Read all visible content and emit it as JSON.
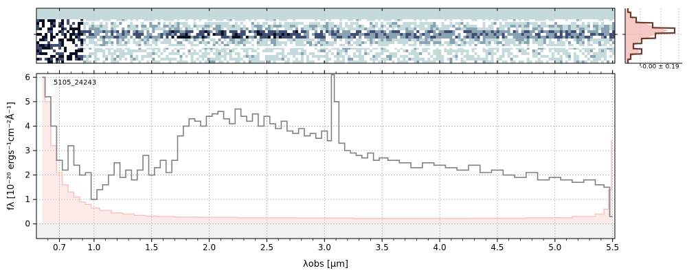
{
  "chart_data": [
    {
      "type": "heatmap",
      "panel": "2D spectrum",
      "colormap": [
        "#ffffff",
        "#c5dadb",
        "#8aa3b3",
        "#3f4e72",
        "#0b0f22"
      ],
      "background_color": "#c5dadb",
      "trace": "dark horizontal trace along the center, strongest between 2.0 and 3.1 µm"
    },
    {
      "type": "line",
      "panel": "spatial profile",
      "annotation": "-0.00 ± 0.19",
      "series_colors": {
        "profile": "#6b3a2a",
        "model": "#f2b7b2"
      },
      "profile_y": [
        0.05,
        0.1,
        0.2,
        0.5,
        0.9,
        0.55,
        0.3,
        0.15,
        0.3,
        0.1,
        0.05
      ],
      "grid": true
    },
    {
      "type": "line",
      "panel": "1D spectrum",
      "label": "5105_24243",
      "xlabel": "λobs [μm]",
      "ylabel": "fλ [10⁻²⁰ ergs⁻¹cm⁻²Å⁻¹]",
      "x_ticks": [
        "0.7",
        "1.0",
        "1.5",
        "2.0",
        "2.5",
        "3.0",
        "3.5",
        "4.0",
        "4.5",
        "5.0",
        "5.5"
      ],
      "x_tick_values": [
        0.7,
        1.0,
        1.5,
        2.0,
        2.5,
        3.0,
        3.5,
        4.0,
        4.5,
        5.0,
        5.5
      ],
      "y_ticks": [
        "0",
        "1",
        "2",
        "3",
        "4",
        "5",
        "6"
      ],
      "y_tick_values": [
        0,
        1,
        2,
        3,
        4,
        5,
        6
      ],
      "xlim": [
        0.5,
        5.52
      ],
      "ylim": [
        -0.6,
        6.15
      ],
      "grid": true,
      "series": [
        {
          "role": "flux",
          "color": "#808080",
          "x": [
            0.55,
            0.6,
            0.65,
            0.7,
            0.75,
            0.8,
            0.85,
            0.9,
            0.95,
            1.0,
            1.05,
            1.1,
            1.15,
            1.2,
            1.25,
            1.3,
            1.35,
            1.4,
            1.45,
            1.5,
            1.55,
            1.6,
            1.65,
            1.7,
            1.75,
            1.8,
            1.85,
            1.9,
            1.95,
            2.0,
            2.05,
            2.1,
            2.15,
            2.2,
            2.25,
            2.3,
            2.35,
            2.4,
            2.45,
            2.5,
            2.55,
            2.6,
            2.65,
            2.7,
            2.75,
            2.8,
            2.85,
            2.9,
            2.95,
            3.0,
            3.05,
            3.07,
            3.1,
            3.15,
            3.2,
            3.25,
            3.3,
            3.35,
            3.4,
            3.45,
            3.5,
            3.6,
            3.7,
            3.8,
            3.9,
            4.0,
            4.1,
            4.2,
            4.3,
            4.4,
            4.5,
            4.6,
            4.7,
            4.8,
            4.9,
            5.0,
            5.1,
            5.2,
            5.3,
            5.4,
            5.45,
            5.5
          ],
          "y": [
            6.0,
            5.2,
            4.0,
            2.6,
            2.2,
            3.2,
            2.4,
            2.0,
            2.1,
            1.0,
            1.4,
            1.6,
            2.0,
            2.5,
            1.9,
            2.2,
            1.8,
            2.2,
            2.8,
            2.0,
            2.3,
            2.6,
            2.1,
            2.6,
            3.6,
            4.0,
            4.3,
            4.2,
            4.0,
            4.4,
            4.5,
            4.6,
            4.3,
            4.1,
            4.7,
            4.4,
            4.2,
            4.5,
            4.0,
            4.4,
            4.1,
            3.9,
            4.2,
            3.8,
            3.7,
            3.9,
            3.6,
            3.7,
            3.5,
            3.8,
            3.4,
            6.1,
            5.0,
            3.3,
            3.0,
            2.9,
            2.8,
            2.7,
            2.9,
            2.6,
            2.7,
            2.6,
            2.5,
            2.3,
            2.5,
            2.4,
            2.3,
            2.2,
            2.4,
            2.1,
            2.2,
            2.0,
            1.9,
            2.1,
            1.8,
            1.9,
            1.8,
            1.7,
            1.8,
            1.6,
            1.5,
            0.3
          ]
        },
        {
          "role": "uncertainty",
          "color": "#f7c4c0",
          "x": [
            0.55,
            0.6,
            0.65,
            0.7,
            0.75,
            0.8,
            0.85,
            0.9,
            0.95,
            1.0,
            1.1,
            1.2,
            1.3,
            1.4,
            1.5,
            1.6,
            1.8,
            2.0,
            2.5,
            3.0,
            3.5,
            4.0,
            4.5,
            5.0,
            5.3,
            5.4,
            5.45,
            5.48,
            5.5
          ],
          "y": [
            6.0,
            5.0,
            3.2,
            2.1,
            1.6,
            1.3,
            1.1,
            0.9,
            0.8,
            0.65,
            0.55,
            0.45,
            0.4,
            0.35,
            0.32,
            0.3,
            0.28,
            0.27,
            0.25,
            0.24,
            0.22,
            0.22,
            0.23,
            0.25,
            0.3,
            0.4,
            0.6,
            1.4,
            3.4
          ]
        }
      ]
    }
  ]
}
